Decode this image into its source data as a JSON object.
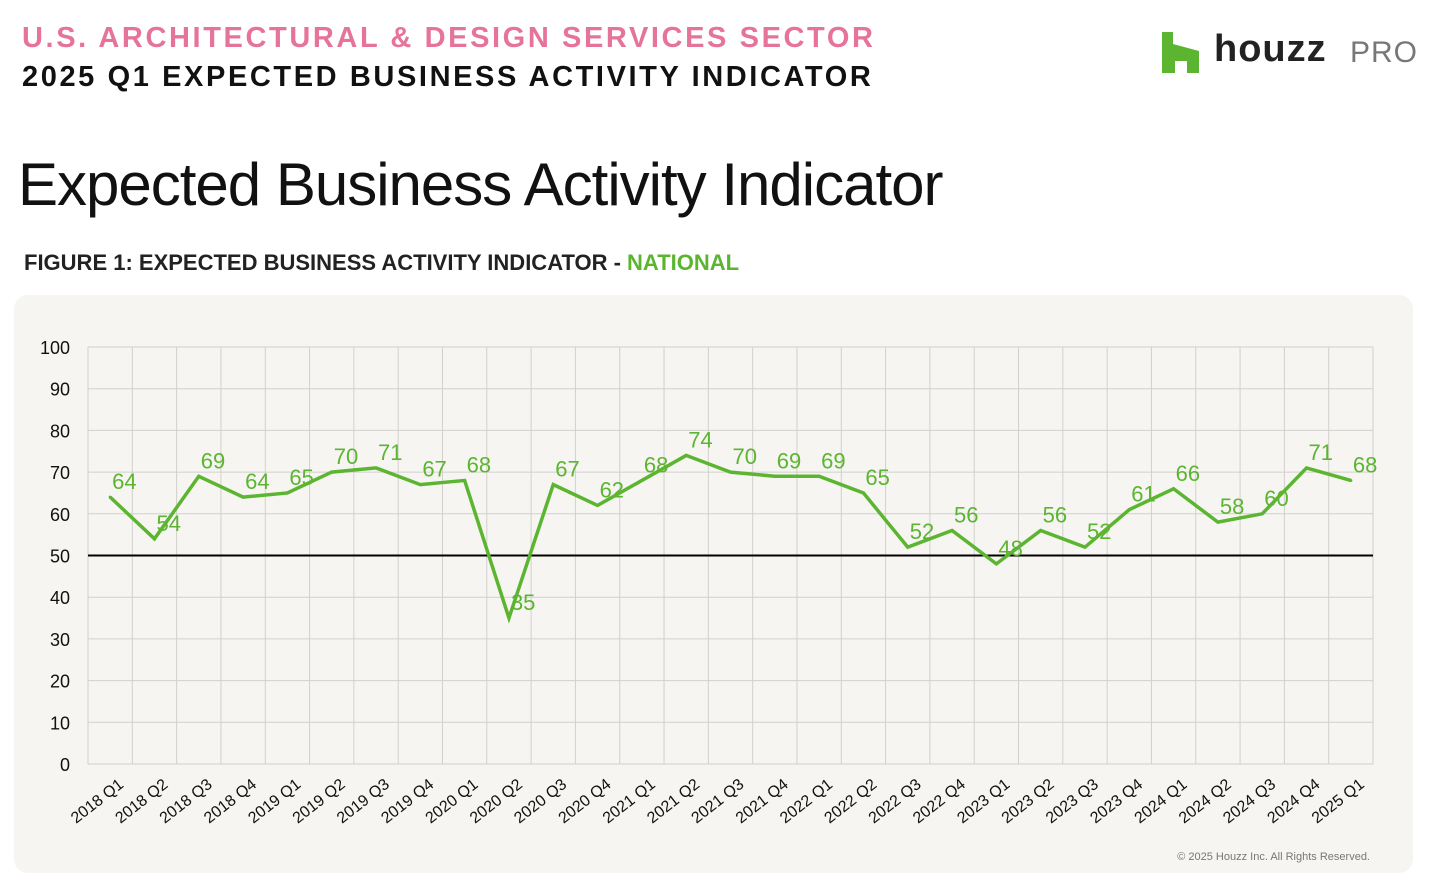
{
  "header": {
    "kicker": "U.S. ARCHITECTURAL & DESIGN SERVICES SECTOR",
    "subkicker": "2025 Q1 EXPECTED BUSINESS ACTIVITY INDICATOR",
    "logo_brand": "houzz",
    "logo_suffix": "PRO"
  },
  "page_title": "Expected Business Activity Indicator",
  "figure_label": {
    "prefix": "FIGURE 1: EXPECTED BUSINESS ACTIVITY INDICATOR - ",
    "accent": "NATIONAL"
  },
  "colors": {
    "line": "#5cb531",
    "kicker": "#e6739a",
    "reference_line": "#000000",
    "grid": "#d2d0cc"
  },
  "chart_data": {
    "type": "line",
    "title": "FIGURE 1: EXPECTED BUSINESS ACTIVITY INDICATOR - NATIONAL",
    "xlabel": "",
    "ylabel": "",
    "ylim": [
      0,
      100
    ],
    "yticks": [
      0,
      10,
      20,
      30,
      40,
      50,
      60,
      70,
      80,
      90,
      100
    ],
    "grid": true,
    "reference_line": 50,
    "categories": [
      "2018 Q1",
      "2018 Q2",
      "2018 Q3",
      "2018 Q4",
      "2019 Q1",
      "2019 Q2",
      "2019 Q3",
      "2019 Q4",
      "2020 Q1",
      "2020 Q2",
      "2020 Q3",
      "2020 Q4",
      "2021 Q1",
      "2021 Q2",
      "2021 Q3",
      "2021 Q4",
      "2022 Q1",
      "2022 Q2",
      "2022 Q3",
      "2022 Q4",
      "2023 Q1",
      "2023 Q2",
      "2023 Q3",
      "2023 Q4",
      "2024 Q1",
      "2024 Q2",
      "2024 Q3",
      "2024 Q4",
      "2025 Q1"
    ],
    "series": [
      {
        "name": "National",
        "values": [
          64,
          54,
          69,
          64,
          65,
          70,
          71,
          67,
          68,
          35,
          67,
          62,
          68,
          74,
          70,
          69,
          69,
          65,
          52,
          56,
          48,
          56,
          52,
          61,
          66,
          58,
          60,
          71,
          68
        ]
      }
    ]
  },
  "footer": {
    "copyright": "© 2025 Houzz Inc. All Rights Reserved."
  }
}
